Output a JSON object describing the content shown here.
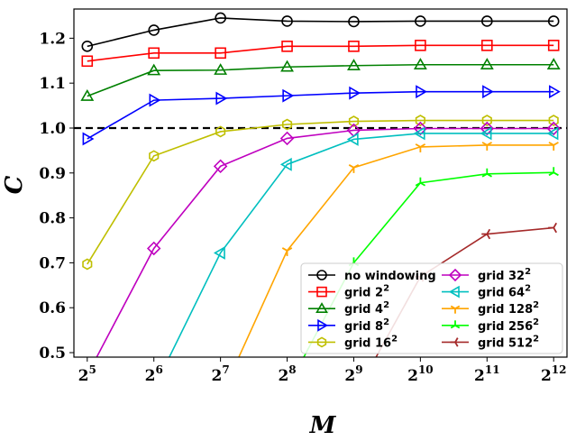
{
  "chart_data": {
    "type": "line",
    "xlabel": "M",
    "ylabel": "C",
    "x_tick_labels": [
      {
        "base": "2",
        "exp": "5"
      },
      {
        "base": "2",
        "exp": "6"
      },
      {
        "base": "2",
        "exp": "7"
      },
      {
        "base": "2",
        "exp": "8"
      },
      {
        "base": "2",
        "exp": "9"
      },
      {
        "base": "2",
        "exp": "10"
      },
      {
        "base": "2",
        "exp": "11"
      },
      {
        "base": "2",
        "exp": "12"
      }
    ],
    "x": [
      32,
      64,
      128,
      256,
      512,
      1024,
      2048,
      4096
    ],
    "x_scale": "log2",
    "y_ticks": [
      "0.5",
      "0.6",
      "0.7",
      "0.8",
      "0.9",
      "1.0",
      "1.1",
      "1.2"
    ],
    "ylim": [
      0.49,
      1.265
    ],
    "grid": false,
    "reference_line": {
      "y": 1.0,
      "style": "dashed",
      "color": "#000000"
    },
    "legend": {
      "placement": "lower-right",
      "columns": 2
    },
    "series": [
      {
        "name": "no windowing",
        "label_base": "no windowing",
        "label_exp": "",
        "color": "#000000",
        "marker": "circle",
        "values": [
          1.182,
          1.218,
          1.245,
          1.238,
          1.237,
          1.238,
          1.238,
          1.238
        ]
      },
      {
        "name": "grid 2^2",
        "label_base": "grid 2",
        "label_exp": "2",
        "color": "#ff0000",
        "marker": "square",
        "values": [
          1.149,
          1.167,
          1.167,
          1.182,
          1.182,
          1.184,
          1.184,
          1.184
        ]
      },
      {
        "name": "grid 4^2",
        "label_base": "grid 4",
        "label_exp": "2",
        "color": "#008000",
        "marker": "triangle-up",
        "values": [
          1.071,
          1.128,
          1.129,
          1.136,
          1.139,
          1.141,
          1.141,
          1.141
        ]
      },
      {
        "name": "grid 8^2",
        "label_base": "grid 8",
        "label_exp": "2",
        "color": "#0000ff",
        "marker": "triangle-right",
        "values": [
          0.976,
          1.062,
          1.066,
          1.072,
          1.078,
          1.081,
          1.081,
          1.081
        ]
      },
      {
        "name": "grid 16^2",
        "label_base": "grid 16",
        "label_exp": "2",
        "color": "#bfbf00",
        "marker": "hexagon",
        "values": [
          0.697,
          0.938,
          0.992,
          1.008,
          1.015,
          1.017,
          1.017,
          1.017
        ]
      },
      {
        "name": "grid 32^2",
        "label_base": "grid 32",
        "label_exp": "2",
        "color": "#bf00bf",
        "marker": "diamond",
        "values": [
          0.45,
          0.732,
          0.915,
          0.977,
          0.995,
          0.999,
          0.999,
          0.999
        ]
      },
      {
        "name": "grid 64^2",
        "label_base": "grid 64",
        "label_exp": "2",
        "color": "#00bfbf",
        "marker": "triangle-left",
        "values": [
          null,
          0.42,
          0.722,
          0.919,
          0.975,
          0.988,
          0.988,
          0.988
        ]
      },
      {
        "name": "grid 128^2",
        "label_base": "grid 128",
        "label_exp": "2",
        "color": "#ffa500",
        "marker": "tri-down",
        "values": [
          null,
          null,
          0.4,
          0.727,
          0.912,
          0.958,
          0.962,
          0.962
        ]
      },
      {
        "name": "grid 256^2",
        "label_base": "grid 256",
        "label_exp": "2",
        "color": "#00ff00",
        "marker": "tri-up",
        "values": [
          null,
          null,
          null,
          0.42,
          0.7,
          0.878,
          0.898,
          0.901
        ]
      },
      {
        "name": "grid 512^2",
        "label_base": "grid 512",
        "label_exp": "2",
        "color": "#a52a2a",
        "marker": "tri-left",
        "values": [
          null,
          null,
          null,
          null,
          0.4,
          0.669,
          0.764,
          0.778
        ]
      }
    ]
  }
}
